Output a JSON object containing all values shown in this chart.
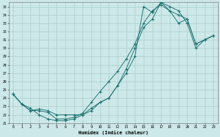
{
  "xlabel": "Humidex (Indice chaleur)",
  "xlim": [
    -0.5,
    23.5
  ],
  "ylim": [
    21,
    35.5
  ],
  "xticks": [
    0,
    1,
    2,
    3,
    4,
    5,
    6,
    7,
    8,
    9,
    10,
    11,
    12,
    13,
    14,
    15,
    16,
    17,
    18,
    19,
    20,
    21,
    22,
    23
  ],
  "yticks": [
    21,
    22,
    23,
    24,
    25,
    26,
    27,
    28,
    29,
    30,
    31,
    32,
    33,
    34,
    35
  ],
  "bg_color": "#cce8e8",
  "line_color": "#1a7070",
  "grid_color": "#b0d0d0",
  "line1_x": [
    0,
    1,
    2,
    3,
    4,
    5,
    6,
    7,
    8,
    9,
    10,
    11,
    12,
    13,
    14,
    15,
    16,
    17,
    18,
    19,
    20,
    21,
    22,
    23
  ],
  "line1_y": [
    24.5,
    23.3,
    22.5,
    22.5,
    22.3,
    21.5,
    21.5,
    21.7,
    22.2,
    23.5,
    24.8,
    26.0,
    27.2,
    28.7,
    30.5,
    33.0,
    34.5,
    35.2,
    34.5,
    34.0,
    33.5,
    30.5,
    31.0,
    31.5
  ],
  "line2_x": [
    0,
    1,
    2,
    3,
    4,
    5,
    6,
    7,
    8,
    9,
    10,
    11,
    12,
    13,
    14,
    15,
    16,
    17,
    18,
    19,
    20,
    21,
    22,
    23
  ],
  "line2_y": [
    24.5,
    23.3,
    22.5,
    22.7,
    22.5,
    22.0,
    22.0,
    22.0,
    22.0,
    22.5,
    23.5,
    24.0,
    25.5,
    27.0,
    29.0,
    35.0,
    34.3,
    35.5,
    35.0,
    34.5,
    33.0,
    30.0,
    31.0,
    31.5
  ],
  "line3_x": [
    0,
    1,
    2,
    3,
    4,
    5,
    6,
    7,
    8,
    9,
    10,
    11,
    12,
    13,
    14,
    15,
    16,
    17,
    18,
    19,
    20,
    21,
    22,
    23
  ],
  "line3_y": [
    24.5,
    23.3,
    22.8,
    22.0,
    21.5,
    21.3,
    21.3,
    21.5,
    22.0,
    22.8,
    23.5,
    24.0,
    25.5,
    27.5,
    30.0,
    32.5,
    33.5,
    35.5,
    34.5,
    33.0,
    33.5,
    30.5,
    31.0,
    31.5
  ]
}
